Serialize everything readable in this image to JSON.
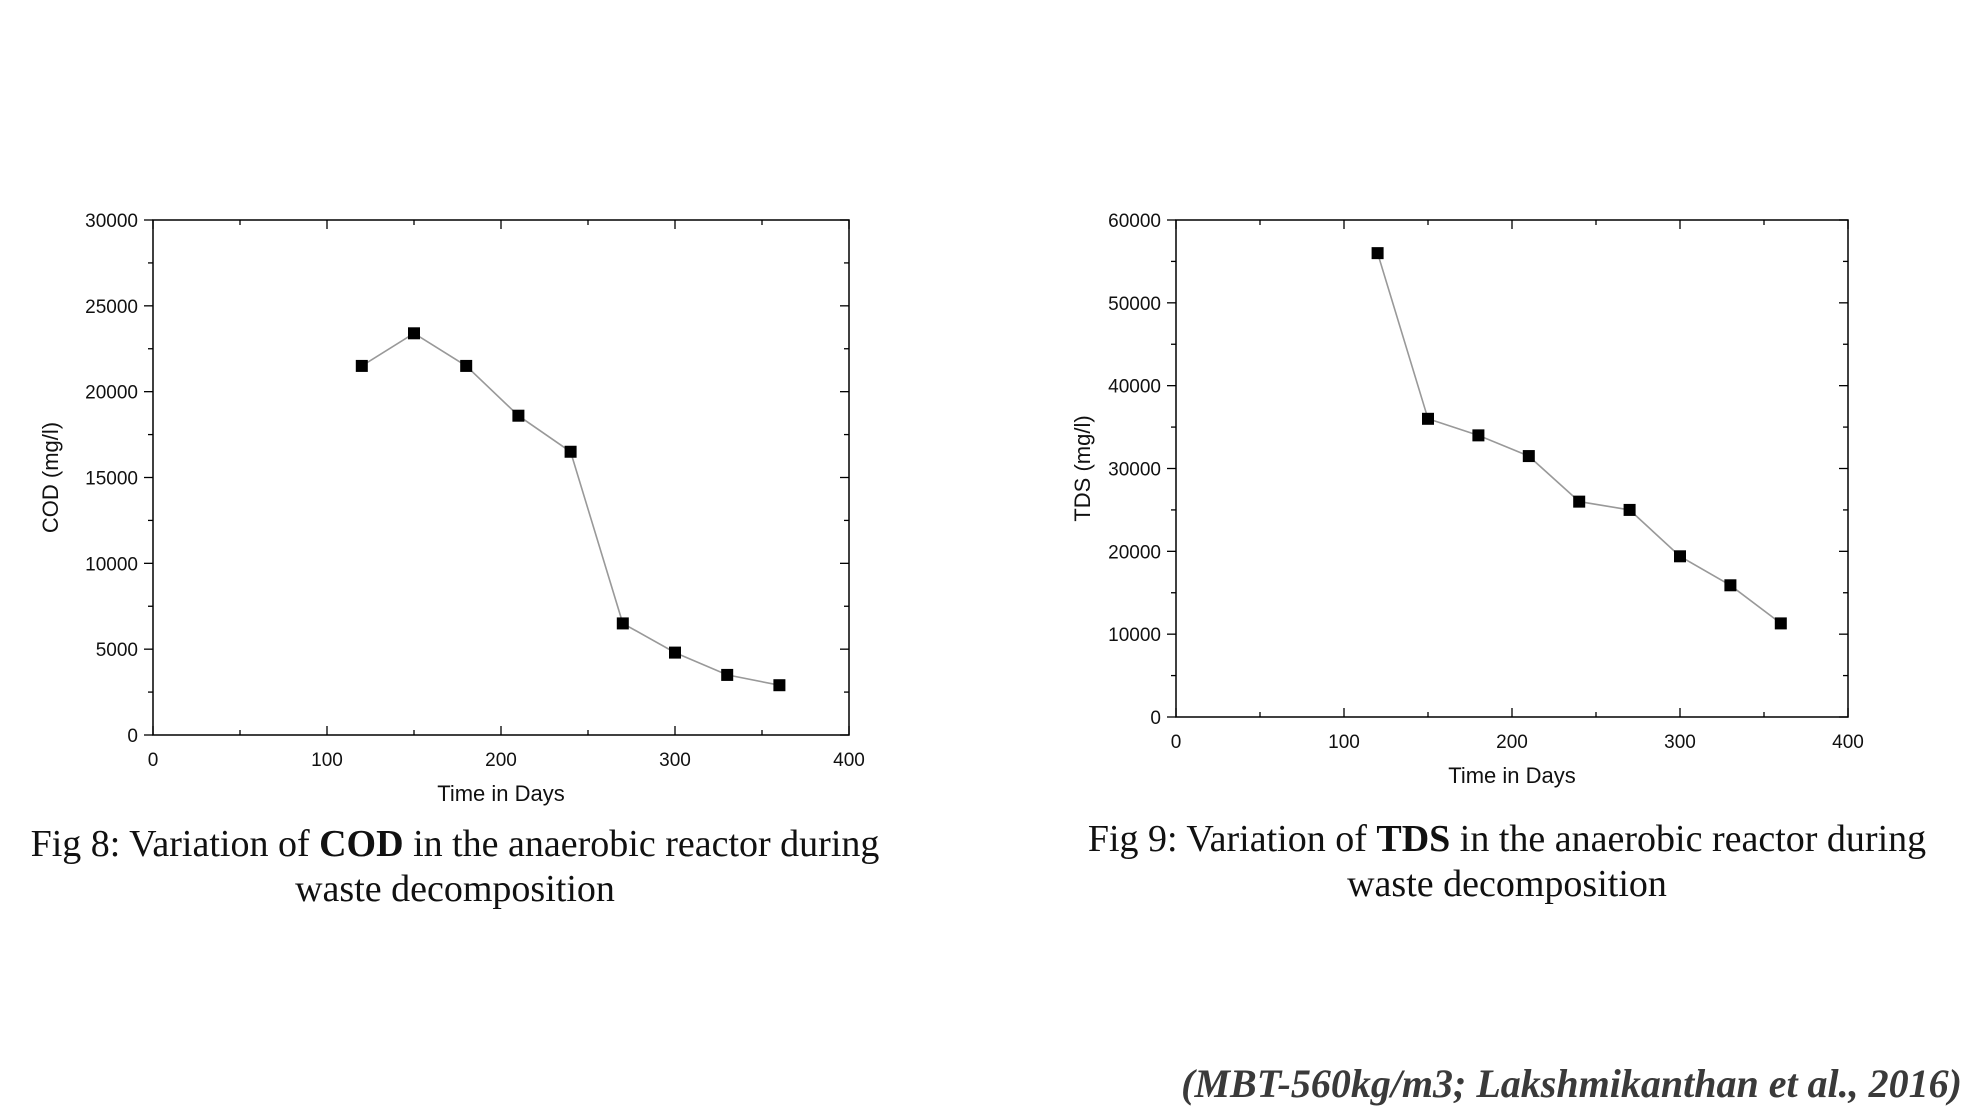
{
  "chart_data": [
    {
      "type": "line",
      "markers": "square",
      "x": [
        120,
        150,
        180,
        210,
        240,
        270,
        300,
        330,
        360
      ],
      "series": [
        {
          "values": [
            21500,
            23400,
            21500,
            18600,
            16500,
            6500,
            4800,
            3500,
            2900
          ]
        }
      ],
      "xlabel": "Time in Days",
      "ylabel": "COD (mg/l)",
      "xlim": [
        0,
        400
      ],
      "ylim": [
        0,
        30000
      ],
      "xticks": [
        0,
        100,
        200,
        300,
        400
      ],
      "yticks": [
        0,
        5000,
        10000,
        15000,
        20000,
        25000,
        30000
      ],
      "grid": false,
      "line_color": "#999999",
      "marker_color": "#000000"
    },
    {
      "type": "line",
      "markers": "square",
      "x": [
        120,
        150,
        180,
        210,
        240,
        270,
        300,
        330,
        360
      ],
      "series": [
        {
          "values": [
            56000,
            36000,
            34000,
            31500,
            26000,
            25000,
            19400,
            15900,
            11300
          ]
        }
      ],
      "xlabel": "Time in Days",
      "ylabel": "TDS (mg/l)",
      "xlim": [
        0,
        400
      ],
      "ylim": [
        0,
        60000
      ],
      "xticks": [
        0,
        100,
        200,
        300,
        400
      ],
      "yticks": [
        0,
        10000,
        20000,
        30000,
        40000,
        50000,
        60000
      ],
      "grid": false,
      "line_color": "#999999",
      "marker_color": "#000000"
    }
  ],
  "captions": {
    "fig8": {
      "prefix": "Fig 8: Variation of ",
      "bold": "COD",
      "suffix": " in the anaerobic reactor during waste decomposition"
    },
    "fig9": {
      "prefix": "Fig 9: Variation of ",
      "bold": "TDS",
      "suffix": " in the anaerobic reactor during waste decomposition"
    }
  },
  "citation": "(MBT-560kg/m3; Lakshmikanthan et al., 2016)"
}
